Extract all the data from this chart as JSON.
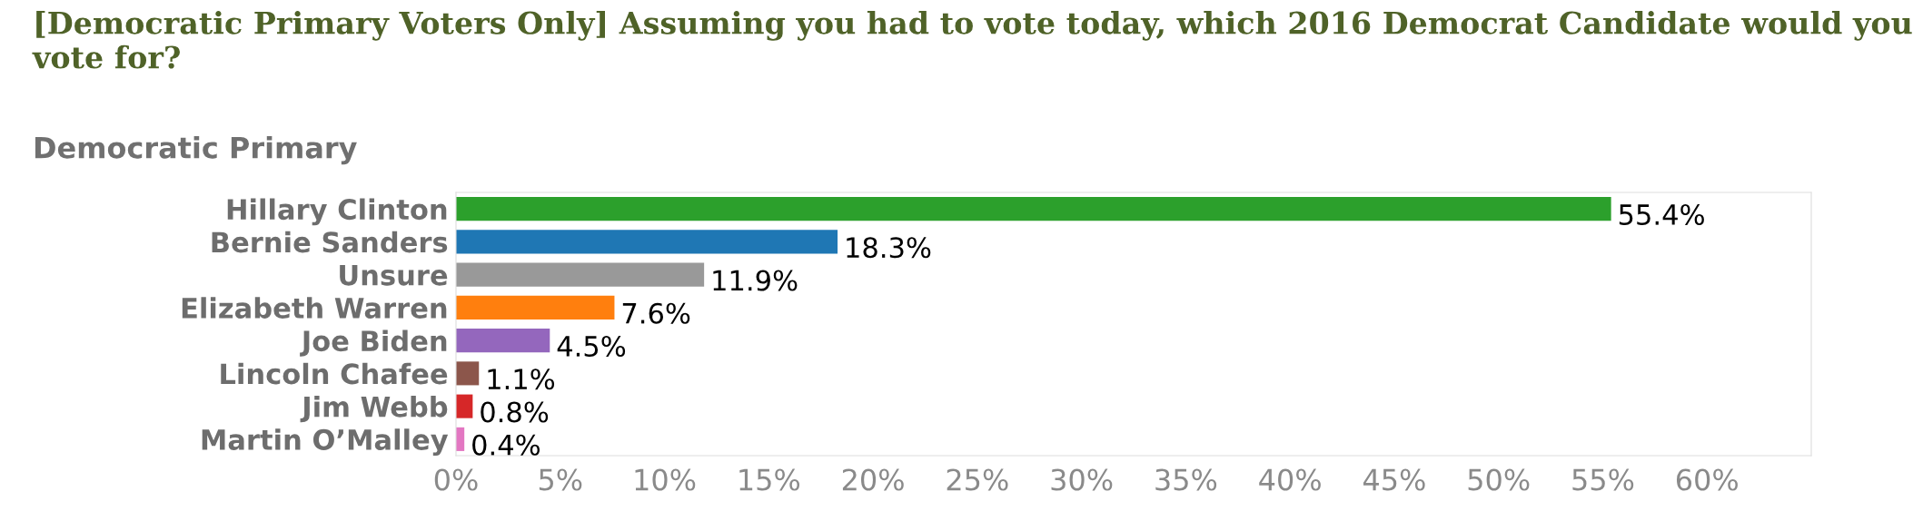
{
  "chart_data": {
    "type": "bar",
    "orientation": "horizontal",
    "title": "[Democratic Primary Voters Only] Assuming you had to vote today, which 2016 Democrat Candidate would you vote for?",
    "subtitle": "Democratic Primary",
    "categories": [
      "Hillary Clinton",
      "Bernie Sanders",
      "Unsure",
      "Elizabeth Warren",
      "Joe Biden",
      "Lincoln Chafee",
      "Jim Webb",
      "Martin O’Malley"
    ],
    "values": [
      55.4,
      18.3,
      11.9,
      7.6,
      4.5,
      1.1,
      0.8,
      0.4
    ],
    "colors": [
      "#2ca02c",
      "#1f77b4",
      "#999999",
      "#ff7f0e",
      "#9467bd",
      "#8c564b",
      "#d62728",
      "#e377c2"
    ],
    "value_labels": [
      "55.4%",
      "18.3%",
      "11.9%",
      "7.6%",
      "4.5%",
      "1.1%",
      "0.8%",
      "0.4%"
    ],
    "xlim": [
      0,
      65
    ],
    "xticks": [
      {
        "value": 0,
        "label": "0%"
      },
      {
        "value": 5,
        "label": "5%"
      },
      {
        "value": 10,
        "label": "10%"
      },
      {
        "value": 15,
        "label": "15%"
      },
      {
        "value": 20,
        "label": "20%"
      },
      {
        "value": 25,
        "label": "25%"
      },
      {
        "value": 30,
        "label": "30%"
      },
      {
        "value": 35,
        "label": "35%"
      },
      {
        "value": 40,
        "label": "40%"
      },
      {
        "value": 45,
        "label": "45%"
      },
      {
        "value": 50,
        "label": "50%"
      },
      {
        "value": 55,
        "label": "55%"
      },
      {
        "value": 60,
        "label": "60%"
      }
    ],
    "grid": false,
    "legend": false
  }
}
